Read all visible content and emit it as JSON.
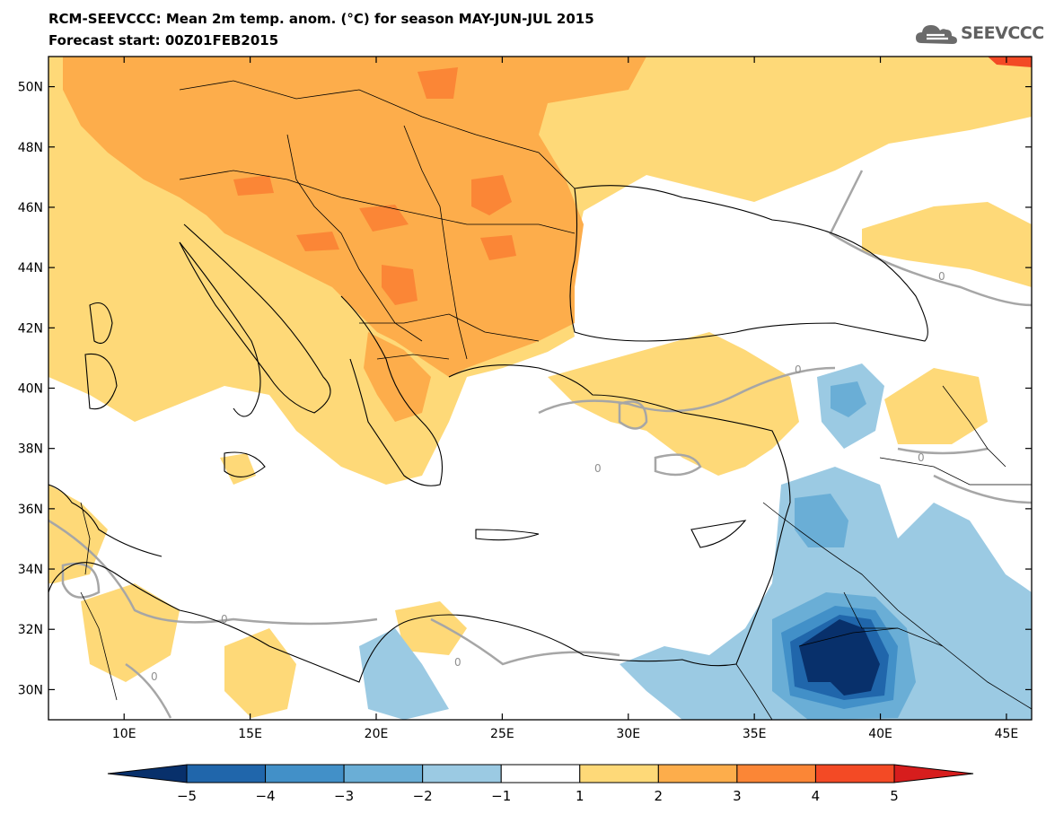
{
  "header": {
    "title": "RCM-SEEVCCC: Mean 2m temp. anom. (°C) for season MAY-JUN-JUL 2015",
    "subtitle": "Forecast start: 00Z01FEB2015"
  },
  "logo": {
    "text": "SEEVCCC",
    "icon": "cloud-icon",
    "color": "#606060"
  },
  "map": {
    "lon_range": [
      7,
      46
    ],
    "lat_range": [
      29,
      51
    ],
    "lat_ticks": [
      "50N",
      "48N",
      "46N",
      "44N",
      "42N",
      "40N",
      "38N",
      "36N",
      "34N",
      "32N",
      "30N"
    ],
    "lat_values": [
      50,
      48,
      46,
      44,
      42,
      40,
      38,
      36,
      34,
      32,
      30
    ],
    "lon_ticks": [
      "10E",
      "15E",
      "20E",
      "25E",
      "30E",
      "35E",
      "40E",
      "45E"
    ],
    "lon_values": [
      10,
      15,
      20,
      25,
      30,
      35,
      40,
      45
    ],
    "contour_label": "0",
    "colors": {
      "warm1": "#fed978",
      "warm2": "#fdad4b",
      "warm3": "#fb8636",
      "warm4": "#f34a25",
      "warm5": "#d71d1d",
      "cold1": "#9bcae3",
      "cold2": "#6aaed6",
      "cold3": "#4290c8",
      "cold4": "#2066ab",
      "cold5": "#08306b"
    }
  },
  "colorbar": {
    "labels": [
      "−5",
      "−4",
      "−3",
      "−2",
      "−1",
      "1",
      "2",
      "3",
      "4",
      "5"
    ],
    "colors": [
      "#2066ab",
      "#4290c8",
      "#6aaed6",
      "#9bcae3",
      "#ffffff",
      "#fed978",
      "#fdad4b",
      "#fb8636",
      "#f34a25"
    ],
    "under_color": "#08306b",
    "over_color": "#d71d1d"
  }
}
